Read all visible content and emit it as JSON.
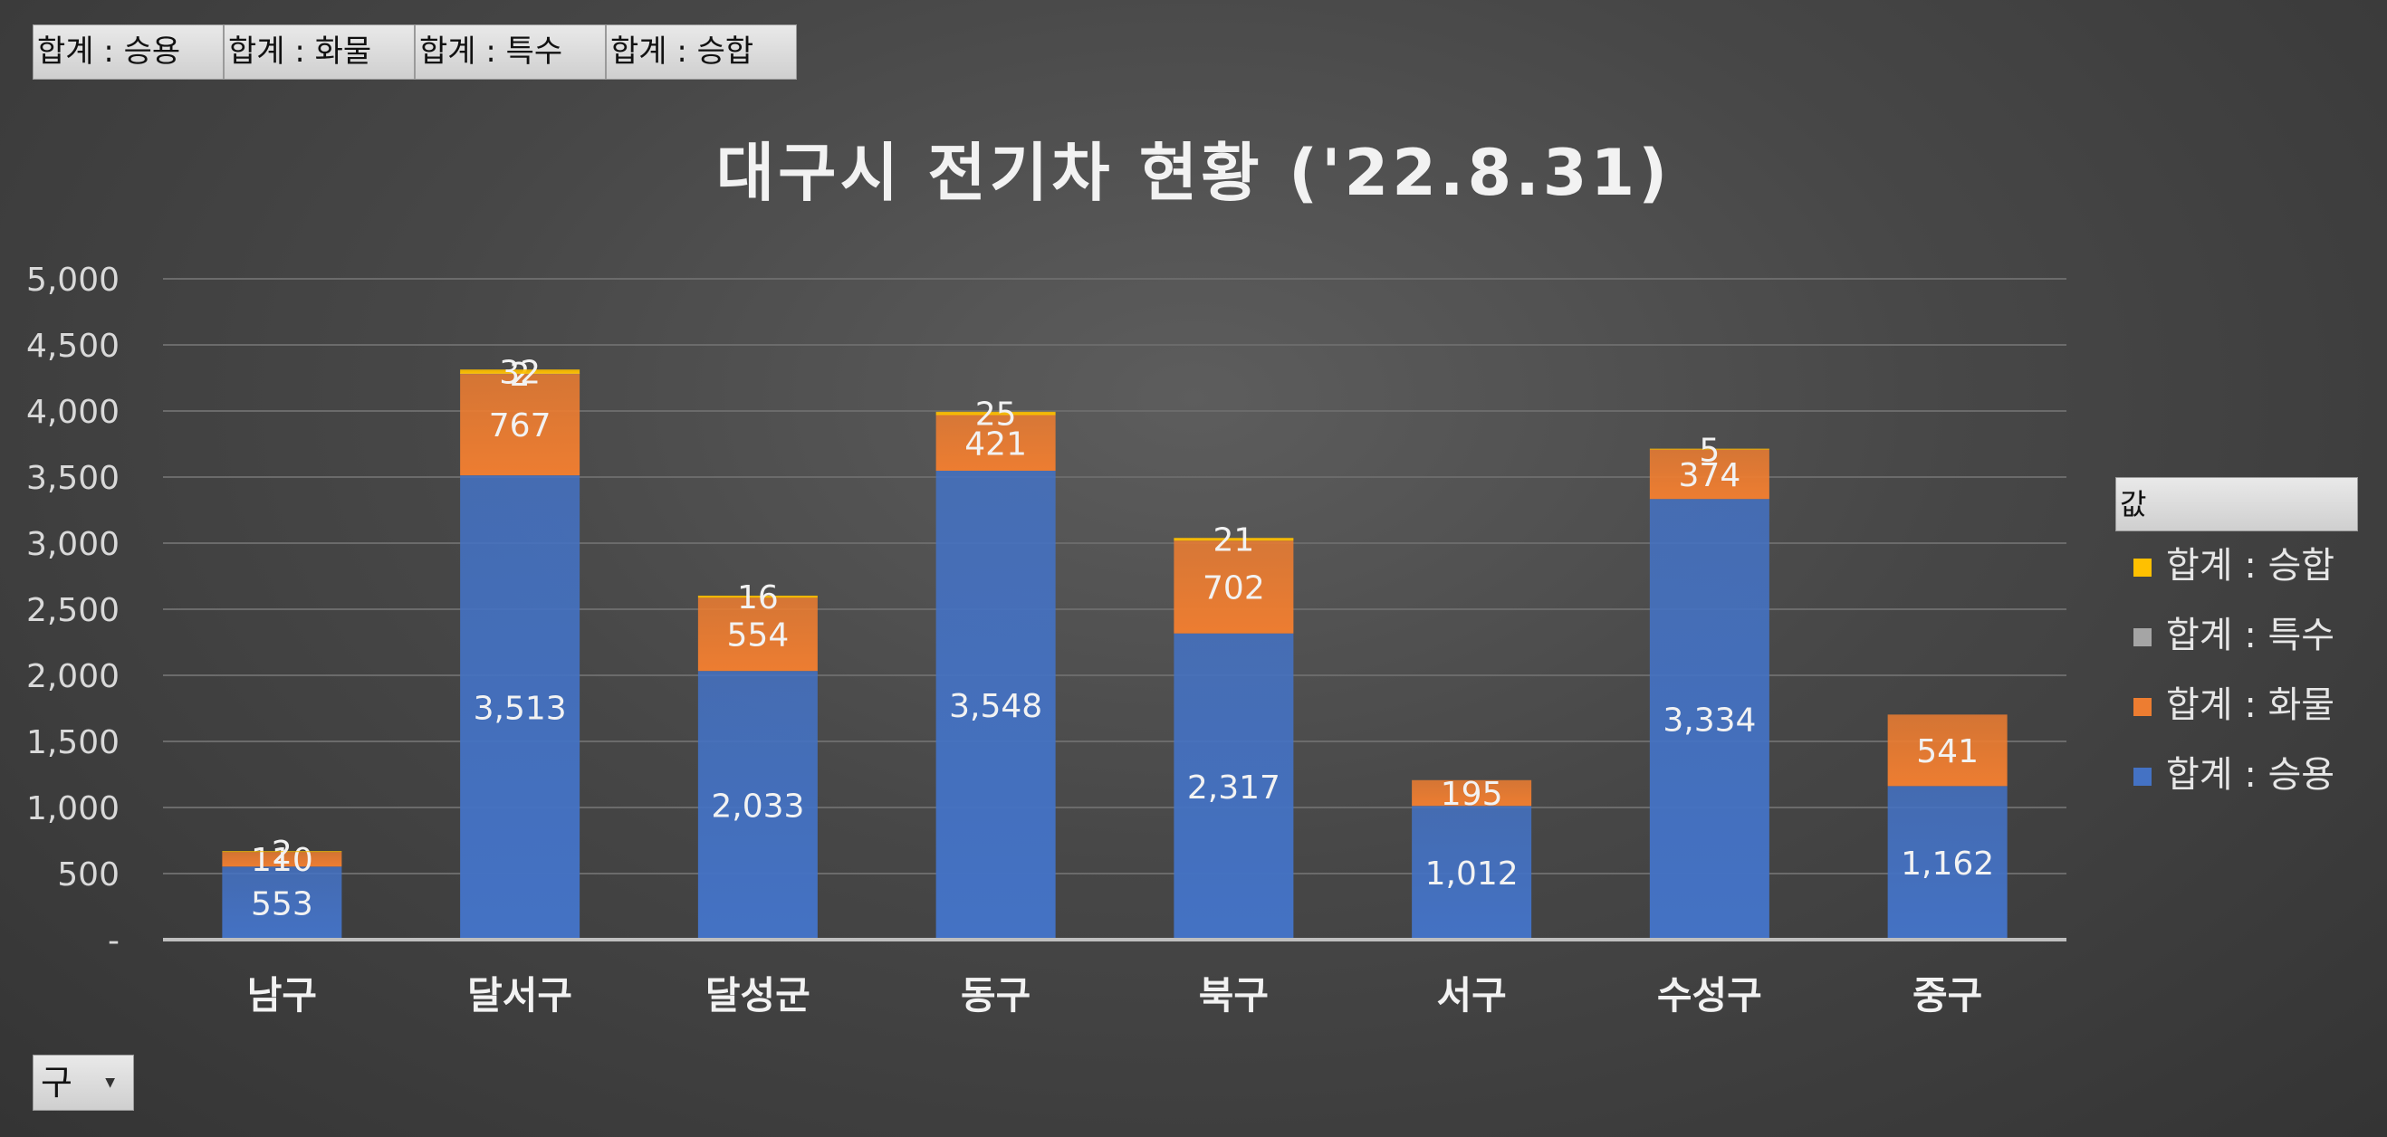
{
  "field_buttons": [
    "합계 : 승용",
    "합계 : 화물",
    "합계 : 특수",
    "합계 : 승합"
  ],
  "filter_button": {
    "label": "구"
  },
  "legend": {
    "header": "값",
    "items": [
      {
        "label": "합계 : 승합",
        "color": "#ffc000"
      },
      {
        "label": "합계 : 특수",
        "color": "#a5a5a5"
      },
      {
        "label": "합계 : 화물",
        "color": "#ed7d31"
      },
      {
        "label": "합계 : 승용",
        "color": "#4472c4"
      }
    ]
  },
  "chart_data": {
    "type": "bar",
    "stacked": true,
    "title": "대구시 전기차 현황 ('22.8.31)",
    "categories": [
      "남구",
      "달서구",
      "달성군",
      "동구",
      "북구",
      "서구",
      "수성구",
      "중구"
    ],
    "series": [
      {
        "name": "합계 : 승용",
        "color": "#4472c4",
        "values": [
          553,
          3513,
          2033,
          3548,
          2317,
          1012,
          3334,
          1162
        ]
      },
      {
        "name": "합계 : 화물",
        "color": "#ed7d31",
        "values": [
          110,
          767,
          554,
          421,
          702,
          195,
          374,
          541
        ]
      },
      {
        "name": "합계 : 특수",
        "color": "#a5a5a5",
        "values": [
          null,
          2,
          null,
          null,
          null,
          null,
          null,
          null
        ]
      },
      {
        "name": "합계 : 승합",
        "color": "#ffc000",
        "values": [
          2,
          32,
          16,
          25,
          21,
          null,
          5,
          null
        ]
      }
    ],
    "ylim": [
      0,
      5000
    ],
    "yticks": [
      0,
      500,
      1000,
      1500,
      2000,
      2500,
      3000,
      3500,
      4000,
      4500,
      5000
    ],
    "ytick_labels": [
      "-",
      "500",
      "1,000",
      "1,500",
      "2,000",
      "2,500",
      "3,000",
      "3,500",
      "4,000",
      "4,500",
      "5,000"
    ],
    "grid": true,
    "legend_position": "right"
  }
}
